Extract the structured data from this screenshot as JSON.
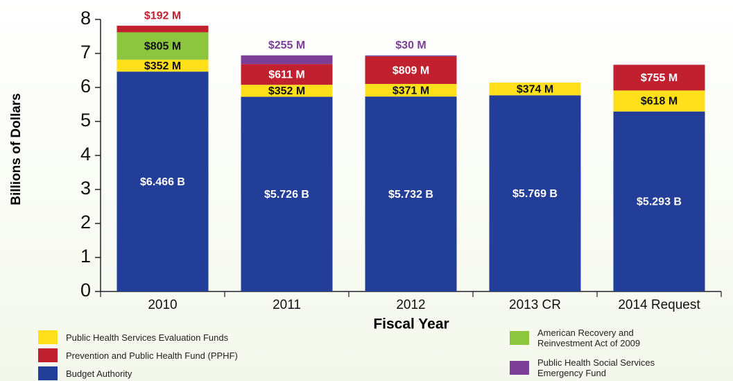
{
  "chart_data": {
    "type": "stacked_bar",
    "x_label": "Fiscal Year",
    "y_label": "Billions of Dollars",
    "categories": [
      "2010",
      "2011",
      "2012",
      "2013 CR",
      "2014 Request"
    ],
    "series": [
      {
        "name": "Budget Authority",
        "color": "#233e98",
        "values": [
          6.466,
          5.726,
          5.732,
          5.769,
          5.293
        ],
        "value_labels": [
          "$6.466 B",
          "$5.726 B",
          "$5.732 B",
          "$5.769 B",
          "$5.293 B"
        ]
      },
      {
        "name": "Public Health Services Evaluation Funds",
        "color": "#ffe01a",
        "values": [
          0.352,
          0.352,
          0.371,
          0.374,
          0.618
        ],
        "value_labels": [
          "$352 M",
          "$352 M",
          "$371 M",
          "$374 M",
          "$618 M"
        ]
      },
      {
        "name": "American Recovery and Reinvestment Act of 2009",
        "color": "#8cc63f",
        "values": [
          0.805,
          null,
          null,
          null,
          null
        ],
        "value_labels": [
          "$805 M",
          null,
          null,
          null,
          null
        ]
      },
      {
        "name": "Prevention and Public Health Fund (PPHF)",
        "color": "#c1202f",
        "values": [
          0.192,
          0.611,
          0.809,
          null,
          0.755
        ],
        "value_labels": [
          "$192 M",
          "$611 M",
          "$809 M",
          null,
          "$755 M"
        ]
      },
      {
        "name": "Public Health Social Services Emergency Fund",
        "color": "#7b3f98",
        "values": [
          null,
          0.255,
          0.03,
          null,
          null
        ],
        "value_labels": [
          null,
          "$255 M",
          "$30 M",
          null,
          null
        ]
      }
    ],
    "ylim": [
      0,
      8
    ],
    "yticks": [
      0,
      1,
      2,
      3,
      4,
      5,
      6,
      7,
      8
    ]
  }
}
